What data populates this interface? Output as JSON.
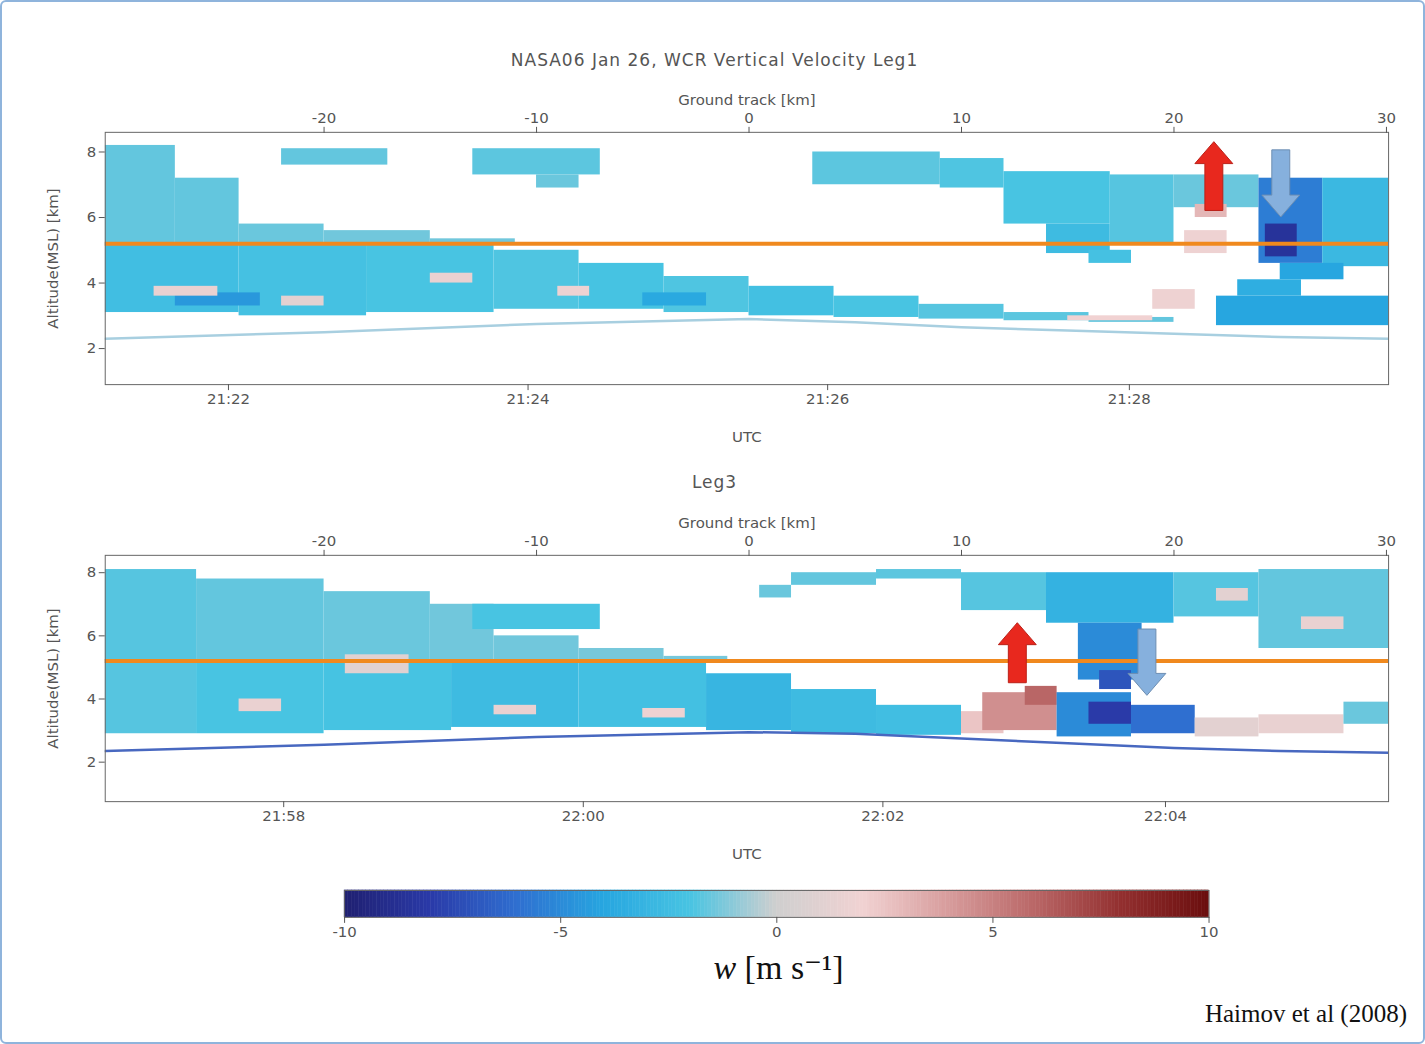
{
  "chart_data": {
    "type": "heatmap",
    "panels": [
      {
        "title": "NASA06 Jan 26, WCR Vertical Velocity Leg1",
        "xlabel": "Ground track [km]",
        "xlim": [
          -30.3,
          30.1
        ],
        "xticks": [
          -20,
          -10,
          0,
          10,
          20,
          30
        ],
        "x2label": "UTC",
        "x2ticks": [
          {
            "value": -24.5,
            "label": "21:22"
          },
          {
            "value": -10.4,
            "label": "21:24"
          },
          {
            "value": 3.7,
            "label": "21:26"
          },
          {
            "value": 17.9,
            "label": "21:28"
          }
        ],
        "ylabel": "Altitude(MSL) [km]",
        "ylim": [
          0.9,
          8.6
        ],
        "yticks": [
          2,
          4,
          6,
          8
        ],
        "flight_level": {
          "altitude": 5.2,
          "color": "#f0891e"
        },
        "surface": {
          "x": [
            -30.3,
            -20,
            -10,
            0,
            5,
            10,
            15,
            20,
            25,
            30.1
          ],
          "altitude": [
            2.3,
            2.5,
            2.75,
            2.9,
            2.8,
            2.65,
            2.55,
            2.45,
            2.35,
            2.3
          ],
          "color": "#a8cfe0"
        },
        "cells": [
          {
            "x1": -30.3,
            "x2": -27,
            "y1": 5.2,
            "y2": 8.2,
            "w": -1.6
          },
          {
            "x1": -27,
            "x2": -24,
            "y1": 5.2,
            "y2": 7.2,
            "w": -1.6
          },
          {
            "x1": -24,
            "x2": -20,
            "y1": 5.2,
            "y2": 5.8,
            "w": -1.5
          },
          {
            "x1": -20,
            "x2": -15,
            "y1": 5.2,
            "y2": 5.6,
            "w": -1.4
          },
          {
            "x1": -15,
            "x2": -11,
            "y1": 5.2,
            "y2": 5.35,
            "w": -1.4
          },
          {
            "x1": -22,
            "x2": -17,
            "y1": 7.6,
            "y2": 8.1,
            "w": -1.6
          },
          {
            "x1": -13,
            "x2": -7,
            "y1": 7.3,
            "y2": 8.1,
            "w": -1.7
          },
          {
            "x1": -10,
            "x2": -8,
            "y1": 6.9,
            "y2": 7.3,
            "w": -1.5
          },
          {
            "x1": -30.3,
            "x2": -24,
            "y1": 3.1,
            "y2": 5.2,
            "w": -2.4
          },
          {
            "x1": -24,
            "x2": -18,
            "y1": 3.0,
            "y2": 5.2,
            "w": -2.2
          },
          {
            "x1": -18,
            "x2": -12,
            "y1": 3.1,
            "y2": 5.2,
            "w": -2.0
          },
          {
            "x1": -12,
            "x2": -8,
            "y1": 3.2,
            "y2": 5.0,
            "w": -1.9
          },
          {
            "x1": -8,
            "x2": -4,
            "y1": 3.2,
            "y2": 4.6,
            "w": -2.1
          },
          {
            "x1": -4,
            "x2": 0,
            "y1": 3.1,
            "y2": 4.2,
            "w": -1.9
          },
          {
            "x1": 0,
            "x2": 4,
            "y1": 3.0,
            "y2": 3.9,
            "w": -2.3
          },
          {
            "x1": 4,
            "x2": 8,
            "y1": 2.95,
            "y2": 3.6,
            "w": -2.0
          },
          {
            "x1": 8,
            "x2": 12,
            "y1": 2.9,
            "y2": 3.35,
            "w": -1.8
          },
          {
            "x1": 12,
            "x2": 16,
            "y1": 2.85,
            "y2": 3.1,
            "w": -1.7
          },
          {
            "x1": 16,
            "x2": 20,
            "y1": 2.8,
            "y2": 2.95,
            "w": -1.6
          },
          {
            "x1": -27,
            "x2": -23,
            "y1": 3.3,
            "y2": 3.7,
            "w": -4.5
          },
          {
            "x1": -5,
            "x2": -2,
            "y1": 3.3,
            "y2": 3.7,
            "w": -3.8
          },
          {
            "x1": -28,
            "x2": -25,
            "y1": 3.6,
            "y2": 3.9,
            "w": 1.5
          },
          {
            "x1": -22,
            "x2": -20,
            "y1": 3.3,
            "y2": 3.6,
            "w": 1.2
          },
          {
            "x1": -15,
            "x2": -13,
            "y1": 4.0,
            "y2": 4.3,
            "w": 1.5
          },
          {
            "x1": -9,
            "x2": -7.5,
            "y1": 3.6,
            "y2": 3.9,
            "w": 1.8
          },
          {
            "x1": 15,
            "x2": 19,
            "y1": 2.85,
            "y2": 3.0,
            "w": 2.0
          },
          {
            "x1": 3,
            "x2": 9,
            "y1": 7.0,
            "y2": 8.0,
            "w": -1.7
          },
          {
            "x1": 9,
            "x2": 12,
            "y1": 6.9,
            "y2": 7.8,
            "w": -1.9
          },
          {
            "x1": 12,
            "x2": 17,
            "y1": 5.8,
            "y2": 7.4,
            "w": -2.0
          },
          {
            "x1": 14,
            "x2": 17,
            "y1": 4.9,
            "y2": 5.8,
            "w": -2.6
          },
          {
            "x1": 16,
            "x2": 18,
            "y1": 4.6,
            "y2": 5.0,
            "w": -2.2
          },
          {
            "x1": 17,
            "x2": 20,
            "y1": 5.2,
            "y2": 7.3,
            "w": -1.8
          },
          {
            "x1": 20,
            "x2": 24,
            "y1": 6.3,
            "y2": 7.3,
            "w": -1.5
          },
          {
            "x1": 20.5,
            "x2": 22.5,
            "y1": 4.9,
            "y2": 5.6,
            "w": 1.8
          },
          {
            "x1": 21,
            "x2": 22.5,
            "y1": 6.0,
            "y2": 6.4,
            "w": 3.0
          },
          {
            "x1": 24,
            "x2": 27,
            "y1": 4.6,
            "y2": 7.2,
            "w": -5.5
          },
          {
            "x1": 24.3,
            "x2": 25.8,
            "y1": 4.8,
            "y2": 5.8,
            "w": -8.5
          },
          {
            "x1": 27,
            "x2": 30.1,
            "y1": 4.5,
            "y2": 7.2,
            "w": -2.8
          },
          {
            "x1": 25,
            "x2": 28,
            "y1": 4.1,
            "y2": 4.6,
            "w": -4.0
          },
          {
            "x1": 22,
            "x2": 30.1,
            "y1": 2.7,
            "y2": 3.6,
            "w": -4.0
          },
          {
            "x1": 23,
            "x2": 26,
            "y1": 3.6,
            "y2": 4.1,
            "w": -3.5
          },
          {
            "x1": 19,
            "x2": 21,
            "y1": 3.2,
            "y2": 3.8,
            "w": 1.8
          }
        ],
        "arrows": [
          {
            "x": 21.9,
            "from": 6.2,
            "to": 8.3,
            "color": "#e8281e"
          },
          {
            "x": 25.05,
            "from": 8.05,
            "to": 6.0,
            "color": "#86b0dd"
          }
        ]
      },
      {
        "title": "Leg3",
        "xlabel": "Ground track [km]",
        "xlim": [
          -30.3,
          30.1
        ],
        "xticks": [
          -20,
          -10,
          0,
          10,
          20,
          30
        ],
        "x2label": "UTC",
        "x2ticks": [
          {
            "value": -21.9,
            "label": "21:58"
          },
          {
            "value": -7.8,
            "label": "22:00"
          },
          {
            "value": 6.3,
            "label": "22:02"
          },
          {
            "value": 19.6,
            "label": "22:04"
          }
        ],
        "ylabel": "Altitude(MSL) [km]",
        "ylim": [
          0.75,
          8.55
        ],
        "yticks": [
          2,
          4,
          6,
          8
        ],
        "flight_level": {
          "altitude": 5.2,
          "color": "#f0891e"
        },
        "surface": {
          "x": [
            -30.3,
            -20,
            -10,
            0,
            5,
            10,
            15,
            20,
            25,
            30.1
          ],
          "altitude": [
            2.35,
            2.55,
            2.8,
            2.95,
            2.9,
            2.75,
            2.6,
            2.45,
            2.35,
            2.3
          ],
          "color": "#4868c0"
        },
        "cells": [
          {
            "x1": -30.3,
            "x2": -26,
            "y1": 5.2,
            "y2": 8.1,
            "w": -1.8
          },
          {
            "x1": -26,
            "x2": -20,
            "y1": 5.2,
            "y2": 7.8,
            "w": -1.6
          },
          {
            "x1": -20,
            "x2": -15,
            "y1": 5.2,
            "y2": 7.4,
            "w": -1.5
          },
          {
            "x1": -15,
            "x2": -12,
            "y1": 5.2,
            "y2": 7.0,
            "w": -1.4
          },
          {
            "x1": -12,
            "x2": -8,
            "y1": 5.2,
            "y2": 6.0,
            "w": -1.4
          },
          {
            "x1": -8,
            "x2": -4,
            "y1": 5.2,
            "y2": 5.6,
            "w": -1.3
          },
          {
            "x1": -4,
            "x2": -1,
            "y1": 5.2,
            "y2": 5.35,
            "w": -1.3
          },
          {
            "x1": -13,
            "x2": -7,
            "y1": 6.2,
            "y2": 7.0,
            "w": -2.0
          },
          {
            "x1": -30.3,
            "x2": -26,
            "y1": 2.9,
            "y2": 5.2,
            "w": -1.8
          },
          {
            "x1": -26,
            "x2": -20,
            "y1": 2.9,
            "y2": 5.2,
            "w": -2.0
          },
          {
            "x1": -20,
            "x2": -14,
            "y1": 3.0,
            "y2": 5.2,
            "w": -2.1
          },
          {
            "x1": -14,
            "x2": -8,
            "y1": 3.1,
            "y2": 5.2,
            "w": -2.6
          },
          {
            "x1": -8,
            "x2": -2,
            "y1": 3.1,
            "y2": 5.2,
            "w": -2.3
          },
          {
            "x1": -2,
            "x2": 2,
            "y1": 3.0,
            "y2": 4.8,
            "w": -3.0
          },
          {
            "x1": 2,
            "x2": 6,
            "y1": 2.9,
            "y2": 4.3,
            "w": -2.6
          },
          {
            "x1": 6,
            "x2": 10,
            "y1": 2.85,
            "y2": 3.8,
            "w": -2.4
          },
          {
            "x1": -19,
            "x2": -16,
            "y1": 4.8,
            "y2": 5.4,
            "w": 1.0
          },
          {
            "x1": -24,
            "x2": -22,
            "y1": 3.6,
            "y2": 4.0,
            "w": 1.6
          },
          {
            "x1": -12,
            "x2": -10,
            "y1": 3.5,
            "y2": 3.8,
            "w": 1.5
          },
          {
            "x1": -5,
            "x2": -3,
            "y1": 3.4,
            "y2": 3.7,
            "w": 1.8
          },
          {
            "x1": 10,
            "x2": 12,
            "y1": 2.9,
            "y2": 3.6,
            "w": 2.5
          },
          {
            "x1": 11,
            "x2": 14.5,
            "y1": 3.0,
            "y2": 4.2,
            "w": 4.5
          },
          {
            "x1": 13,
            "x2": 14.5,
            "y1": 3.8,
            "y2": 4.4,
            "w": 6.0
          },
          {
            "x1": 14.5,
            "x2": 18,
            "y1": 2.8,
            "y2": 4.2,
            "w": -5.0
          },
          {
            "x1": 16,
            "x2": 18,
            "y1": 3.2,
            "y2": 3.9,
            "w": -8.0
          },
          {
            "x1": 18,
            "x2": 21,
            "y1": 2.9,
            "y2": 3.8,
            "w": -6.0
          },
          {
            "x1": 21,
            "x2": 24,
            "y1": 2.8,
            "y2": 3.4,
            "w": 1.2
          },
          {
            "x1": 24,
            "x2": 28,
            "y1": 2.9,
            "y2": 3.5,
            "w": 1.5
          },
          {
            "x1": 28,
            "x2": 30.1,
            "y1": 3.2,
            "y2": 3.9,
            "w": -1.5
          },
          {
            "x1": 0.5,
            "x2": 2,
            "y1": 7.2,
            "y2": 7.6,
            "w": -1.5
          },
          {
            "x1": 2,
            "x2": 6,
            "y1": 7.6,
            "y2": 8.0,
            "w": -1.6
          },
          {
            "x1": 6,
            "x2": 10,
            "y1": 7.8,
            "y2": 8.1,
            "w": -1.7
          },
          {
            "x1": 10,
            "x2": 14,
            "y1": 6.8,
            "y2": 8.0,
            "w": -1.8
          },
          {
            "x1": 14,
            "x2": 20,
            "y1": 6.4,
            "y2": 8.0,
            "w": -3.2
          },
          {
            "x1": 15.5,
            "x2": 18.5,
            "y1": 4.6,
            "y2": 6.4,
            "w": -5.0
          },
          {
            "x1": 16.5,
            "x2": 18,
            "y1": 4.3,
            "y2": 4.9,
            "w": -7.0
          },
          {
            "x1": 20,
            "x2": 24,
            "y1": 6.6,
            "y2": 8.0,
            "w": -1.8
          },
          {
            "x1": 24,
            "x2": 30.1,
            "y1": 5.6,
            "y2": 8.1,
            "w": -1.6
          },
          {
            "x1": 26,
            "x2": 28,
            "y1": 6.2,
            "y2": 6.6,
            "w": 1.5
          },
          {
            "x1": 22,
            "x2": 23.5,
            "y1": 7.1,
            "y2": 7.5,
            "w": 1.2
          }
        ],
        "arrows": [
          {
            "x": 12.65,
            "from": 4.5,
            "to": 6.4,
            "color": "#e8281e"
          },
          {
            "x": 18.75,
            "from": 6.2,
            "to": 4.1,
            "color": "#86b0dd"
          }
        ]
      }
    ],
    "colorbar": {
      "label": "w [m s⁻¹]",
      "range": [
        -10,
        10
      ],
      "ticks": [
        -10,
        -5,
        0,
        5,
        10
      ],
      "colors": [
        "#1f1f70",
        "#2a3aa8",
        "#2f6fd0",
        "#27a6e0",
        "#48c4e2",
        "#cfcfcf",
        "#f1d2d2",
        "#d79c9c",
        "#b96666",
        "#922f2f",
        "#6a0e0e"
      ]
    },
    "source": "Haimov et al (2008)"
  }
}
